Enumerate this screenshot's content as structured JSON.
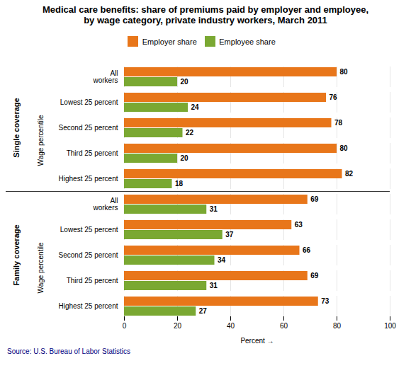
{
  "chart_data": {
    "type": "bar",
    "orientation": "horizontal",
    "title": "Medical care benefits: share of premiums paid by employer and employee,\nby wage category, private industry workers, March 2011",
    "xlabel": "Percent",
    "categories": [
      "All\nworkers",
      "Lowest 25 percent",
      "Second 25 percent",
      "Third 25 percent",
      "Highest 25 percent",
      "All\nworkers",
      "Lowest 25 percent",
      "Second 25 percent",
      "Third 25 percent",
      "Highest 25 percent"
    ],
    "series": [
      {
        "name": "Employer share",
        "color": "#E8761A",
        "values": [
          80,
          76,
          78,
          80,
          82,
          69,
          63,
          66,
          69,
          73
        ]
      },
      {
        "name": "Employee share",
        "color": "#7AA832",
        "values": [
          20,
          24,
          22,
          20,
          18,
          31,
          37,
          34,
          31,
          27
        ]
      }
    ],
    "xlim": [
      0,
      100
    ],
    "xticks": [
      0,
      20,
      40,
      60,
      80,
      100
    ],
    "grid": true,
    "legend": "top",
    "data_labels": true,
    "sections": [
      "Single coverage",
      "Family coverage"
    ],
    "subgroup_label": "Wage percentile",
    "source": "Source: U.S. Bureau of Labor Statistics"
  }
}
